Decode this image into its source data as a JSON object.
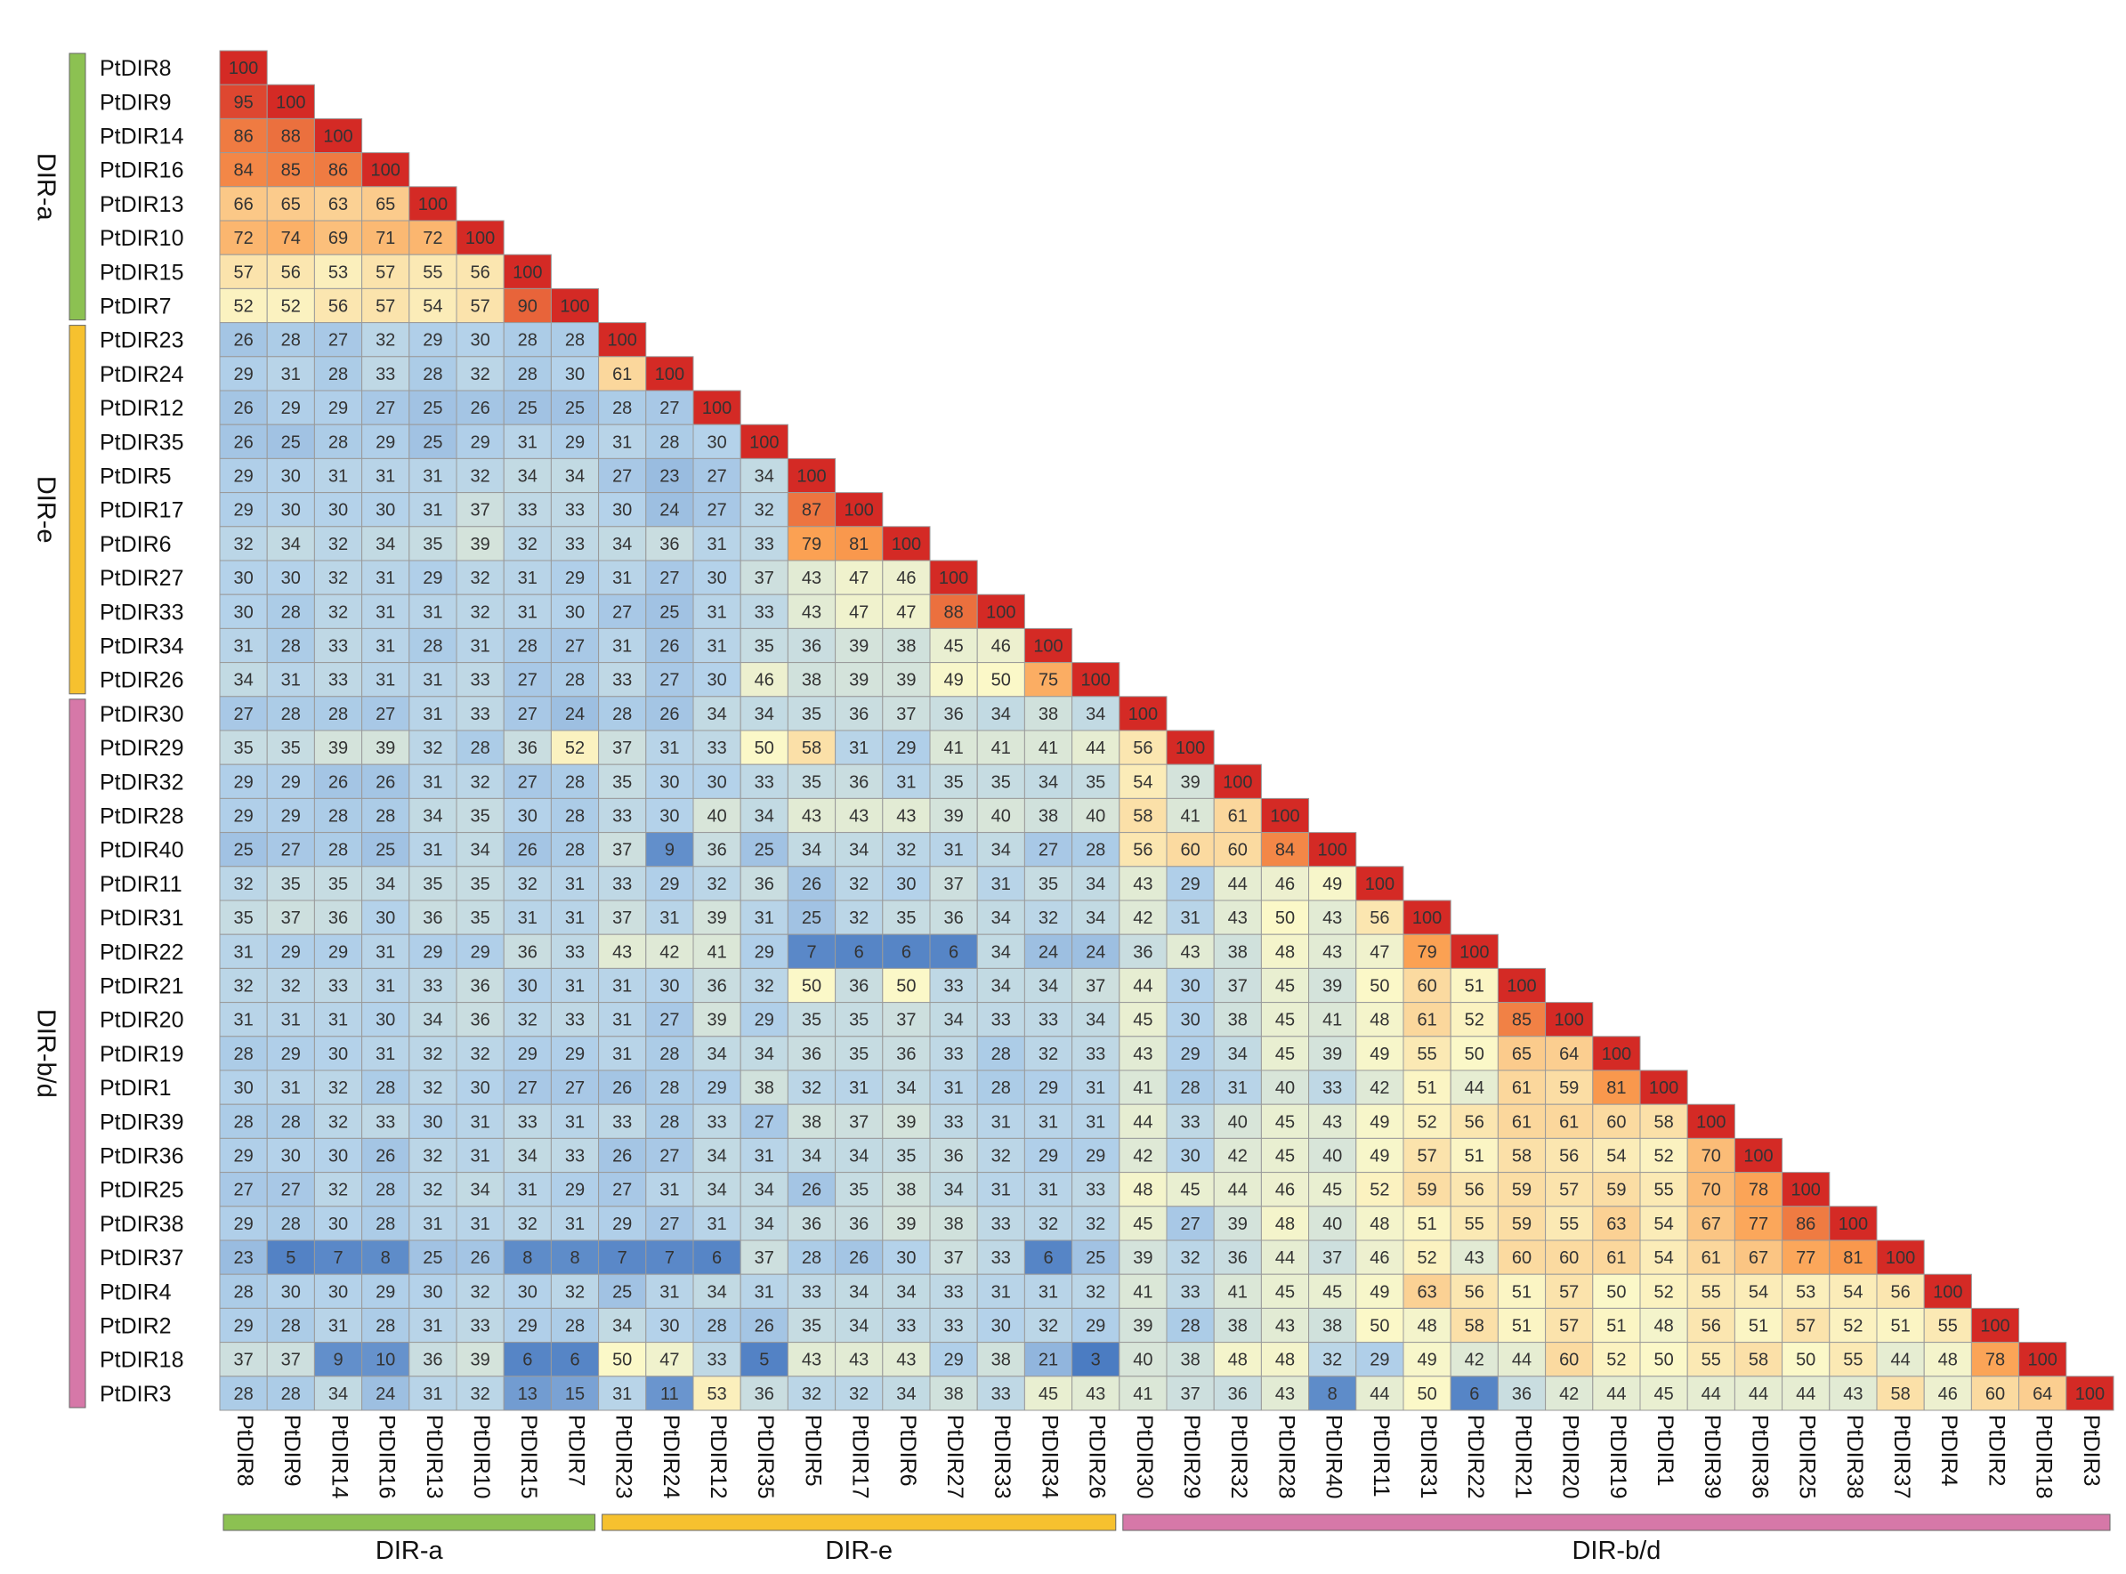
{
  "chart_data": {
    "type": "heatmap",
    "title": "",
    "xlabel": "",
    "ylabel": "",
    "color_scale": {
      "low": "#3f72bd",
      "lowmid": "#b4d2ea",
      "mid": "#fbf8c8",
      "highmid": "#fb9e4f",
      "high": "#d42a25"
    },
    "labels": [
      "PtDIR8",
      "PtDIR9",
      "PtDIR14",
      "PtDIR16",
      "PtDIR13",
      "PtDIR10",
      "PtDIR15",
      "PtDIR7",
      "PtDIR23",
      "PtDIR24",
      "PtDIR12",
      "PtDIR35",
      "PtDIR5",
      "PtDIR17",
      "PtDIR6",
      "PtDIR27",
      "PtDIR33",
      "PtDIR34",
      "PtDIR26",
      "PtDIR30",
      "PtDIR29",
      "PtDIR32",
      "PtDIR28",
      "PtDIR40",
      "PtDIR11",
      "PtDIR31",
      "PtDIR22",
      "PtDIR21",
      "PtDIR20",
      "PtDIR19",
      "PtDIR1",
      "PtDIR39",
      "PtDIR36",
      "PtDIR25",
      "PtDIR38",
      "PtDIR37",
      "PtDIR4",
      "PtDIR2",
      "PtDIR18",
      "PtDIR3"
    ],
    "groups": [
      {
        "name": "DIR-a",
        "start": 0,
        "end": 7,
        "color": "#8cc152"
      },
      {
        "name": "DIR-e",
        "start": 8,
        "end": 18,
        "color": "#f6c12f"
      },
      {
        "name": "DIR-b/d",
        "start": 19,
        "end": 39,
        "color": "#d678a8"
      }
    ],
    "values": [
      [
        100
      ],
      [
        95,
        100
      ],
      [
        86,
        88,
        100
      ],
      [
        84,
        85,
        86,
        100
      ],
      [
        66,
        65,
        63,
        65,
        100
      ],
      [
        72,
        74,
        69,
        71,
        72,
        100
      ],
      [
        57,
        56,
        53,
        57,
        55,
        56,
        100
      ],
      [
        52,
        52,
        56,
        57,
        54,
        57,
        90,
        100
      ],
      [
        26,
        28,
        27,
        32,
        29,
        30,
        28,
        28,
        100
      ],
      [
        29,
        31,
        28,
        33,
        28,
        32,
        28,
        30,
        61,
        100
      ],
      [
        26,
        29,
        29,
        27,
        25,
        26,
        25,
        25,
        28,
        27,
        100
      ],
      [
        26,
        25,
        28,
        29,
        25,
        29,
        31,
        29,
        31,
        28,
        30,
        100
      ],
      [
        29,
        30,
        31,
        31,
        31,
        32,
        34,
        34,
        27,
        23,
        27,
        34,
        100
      ],
      [
        29,
        30,
        30,
        30,
        31,
        37,
        33,
        33,
        30,
        24,
        27,
        32,
        87,
        100
      ],
      [
        32,
        34,
        32,
        34,
        35,
        39,
        32,
        33,
        34,
        36,
        31,
        33,
        79,
        81,
        100
      ],
      [
        30,
        30,
        32,
        31,
        29,
        32,
        31,
        29,
        31,
        27,
        30,
        37,
        43,
        47,
        46,
        100
      ],
      [
        30,
        28,
        32,
        31,
        31,
        32,
        31,
        30,
        27,
        25,
        31,
        33,
        43,
        47,
        47,
        88,
        100
      ],
      [
        31,
        28,
        33,
        31,
        28,
        31,
        28,
        27,
        31,
        26,
        31,
        35,
        36,
        39,
        38,
        45,
        46,
        100
      ],
      [
        34,
        31,
        33,
        31,
        31,
        33,
        27,
        28,
        33,
        27,
        30,
        46,
        38,
        39,
        39,
        49,
        50,
        75,
        100
      ],
      [
        27,
        28,
        28,
        27,
        31,
        33,
        27,
        24,
        28,
        26,
        34,
        34,
        35,
        36,
        37,
        36,
        34,
        38,
        34,
        100
      ],
      [
        35,
        35,
        39,
        39,
        32,
        28,
        36,
        52,
        37,
        31,
        33,
        50,
        58,
        31,
        29,
        41,
        41,
        41,
        44,
        56,
        100
      ],
      [
        29,
        29,
        26,
        26,
        31,
        32,
        27,
        28,
        35,
        30,
        30,
        33,
        35,
        36,
        31,
        35,
        35,
        34,
        35,
        54,
        39,
        100
      ],
      [
        29,
        29,
        28,
        28,
        34,
        35,
        30,
        28,
        33,
        30,
        40,
        34,
        43,
        43,
        43,
        39,
        40,
        38,
        40,
        58,
        41,
        61,
        100
      ],
      [
        25,
        27,
        28,
        25,
        31,
        34,
        26,
        28,
        37,
        9,
        36,
        25,
        34,
        34,
        32,
        31,
        34,
        27,
        28,
        56,
        60,
        60,
        84,
        100
      ],
      [
        32,
        35,
        35,
        34,
        35,
        35,
        32,
        31,
        33,
        29,
        32,
        36,
        26,
        32,
        30,
        37,
        31,
        35,
        34,
        43,
        29,
        44,
        46,
        49,
        100
      ],
      [
        35,
        37,
        36,
        30,
        36,
        35,
        31,
        31,
        37,
        31,
        39,
        31,
        25,
        32,
        35,
        36,
        34,
        32,
        34,
        42,
        31,
        43,
        50,
        43,
        56,
        100
      ],
      [
        31,
        29,
        29,
        31,
        29,
        29,
        36,
        33,
        43,
        42,
        41,
        29,
        7,
        6,
        6,
        6,
        34,
        24,
        24,
        36,
        43,
        38,
        48,
        43,
        47,
        79,
        100
      ],
      [
        32,
        32,
        33,
        31,
        33,
        36,
        30,
        31,
        31,
        30,
        36,
        32,
        50,
        36,
        50,
        33,
        34,
        34,
        37,
        44,
        30,
        37,
        45,
        39,
        50,
        60,
        51,
        100
      ],
      [
        31,
        31,
        31,
        30,
        34,
        36,
        32,
        33,
        31,
        27,
        39,
        29,
        35,
        35,
        37,
        34,
        33,
        33,
        34,
        45,
        30,
        38,
        45,
        41,
        48,
        61,
        52,
        85,
        100
      ],
      [
        28,
        29,
        30,
        31,
        32,
        32,
        29,
        29,
        31,
        28,
        34,
        34,
        36,
        35,
        36,
        33,
        28,
        32,
        33,
        43,
        29,
        34,
        45,
        39,
        49,
        55,
        50,
        65,
        64,
        100
      ],
      [
        30,
        31,
        32,
        28,
        32,
        30,
        27,
        27,
        26,
        28,
        29,
        38,
        32,
        31,
        34,
        31,
        28,
        29,
        31,
        41,
        28,
        31,
        40,
        33,
        42,
        51,
        44,
        61,
        59,
        81,
        100
      ],
      [
        28,
        28,
        32,
        33,
        30,
        31,
        33,
        31,
        33,
        28,
        33,
        27,
        38,
        37,
        39,
        33,
        31,
        31,
        31,
        44,
        33,
        40,
        45,
        43,
        49,
        52,
        56,
        61,
        61,
        60,
        58,
        100
      ],
      [
        29,
        30,
        30,
        26,
        32,
        31,
        34,
        33,
        26,
        27,
        34,
        31,
        34,
        34,
        35,
        36,
        32,
        29,
        29,
        42,
        30,
        42,
        45,
        40,
        49,
        57,
        51,
        58,
        56,
        54,
        52,
        70,
        100
      ],
      [
        27,
        27,
        32,
        28,
        32,
        34,
        31,
        29,
        27,
        31,
        34,
        34,
        26,
        35,
        38,
        34,
        31,
        31,
        33,
        48,
        45,
        44,
        46,
        45,
        52,
        59,
        56,
        59,
        57,
        59,
        55,
        70,
        78,
        100
      ],
      [
        29,
        28,
        30,
        28,
        31,
        31,
        32,
        31,
        29,
        27,
        31,
        34,
        36,
        36,
        39,
        38,
        33,
        32,
        32,
        45,
        27,
        39,
        48,
        40,
        48,
        51,
        55,
        59,
        55,
        63,
        54,
        67,
        77,
        86,
        100
      ],
      [
        23,
        5,
        7,
        8,
        25,
        26,
        8,
        8,
        7,
        7,
        6,
        37,
        28,
        26,
        30,
        37,
        33,
        6,
        25,
        39,
        32,
        36,
        44,
        37,
        46,
        52,
        43,
        60,
        60,
        61,
        54,
        61,
        67,
        77,
        81,
        100
      ],
      [
        28,
        30,
        30,
        29,
        30,
        32,
        30,
        32,
        25,
        31,
        34,
        31,
        33,
        34,
        34,
        33,
        31,
        31,
        32,
        41,
        33,
        41,
        45,
        45,
        49,
        63,
        56,
        51,
        57,
        50,
        52,
        55,
        54,
        53,
        54,
        56,
        100
      ],
      [
        29,
        28,
        31,
        28,
        31,
        33,
        29,
        28,
        34,
        30,
        28,
        26,
        35,
        34,
        33,
        33,
        30,
        32,
        29,
        39,
        28,
        38,
        43,
        38,
        50,
        48,
        58,
        51,
        57,
        51,
        48,
        56,
        51,
        57,
        52,
        51,
        55,
        100
      ],
      [
        37,
        37,
        9,
        10,
        36,
        39,
        6,
        6,
        50,
        47,
        33,
        5,
        43,
        43,
        43,
        29,
        38,
        21,
        3,
        40,
        38,
        48,
        48,
        32,
        29,
        49,
        42,
        44,
        60,
        52,
        50,
        55,
        58,
        50,
        55,
        44,
        48,
        78,
        100
      ],
      [
        28,
        28,
        34,
        24,
        31,
        32,
        13,
        15,
        31,
        11,
        53,
        36,
        32,
        32,
        34,
        38,
        33,
        45,
        43,
        41,
        37,
        36,
        43,
        8,
        44,
        50,
        6,
        36,
        42,
        44,
        45,
        44,
        44,
        44,
        43,
        58,
        46,
        60,
        64,
        100
      ]
    ]
  }
}
